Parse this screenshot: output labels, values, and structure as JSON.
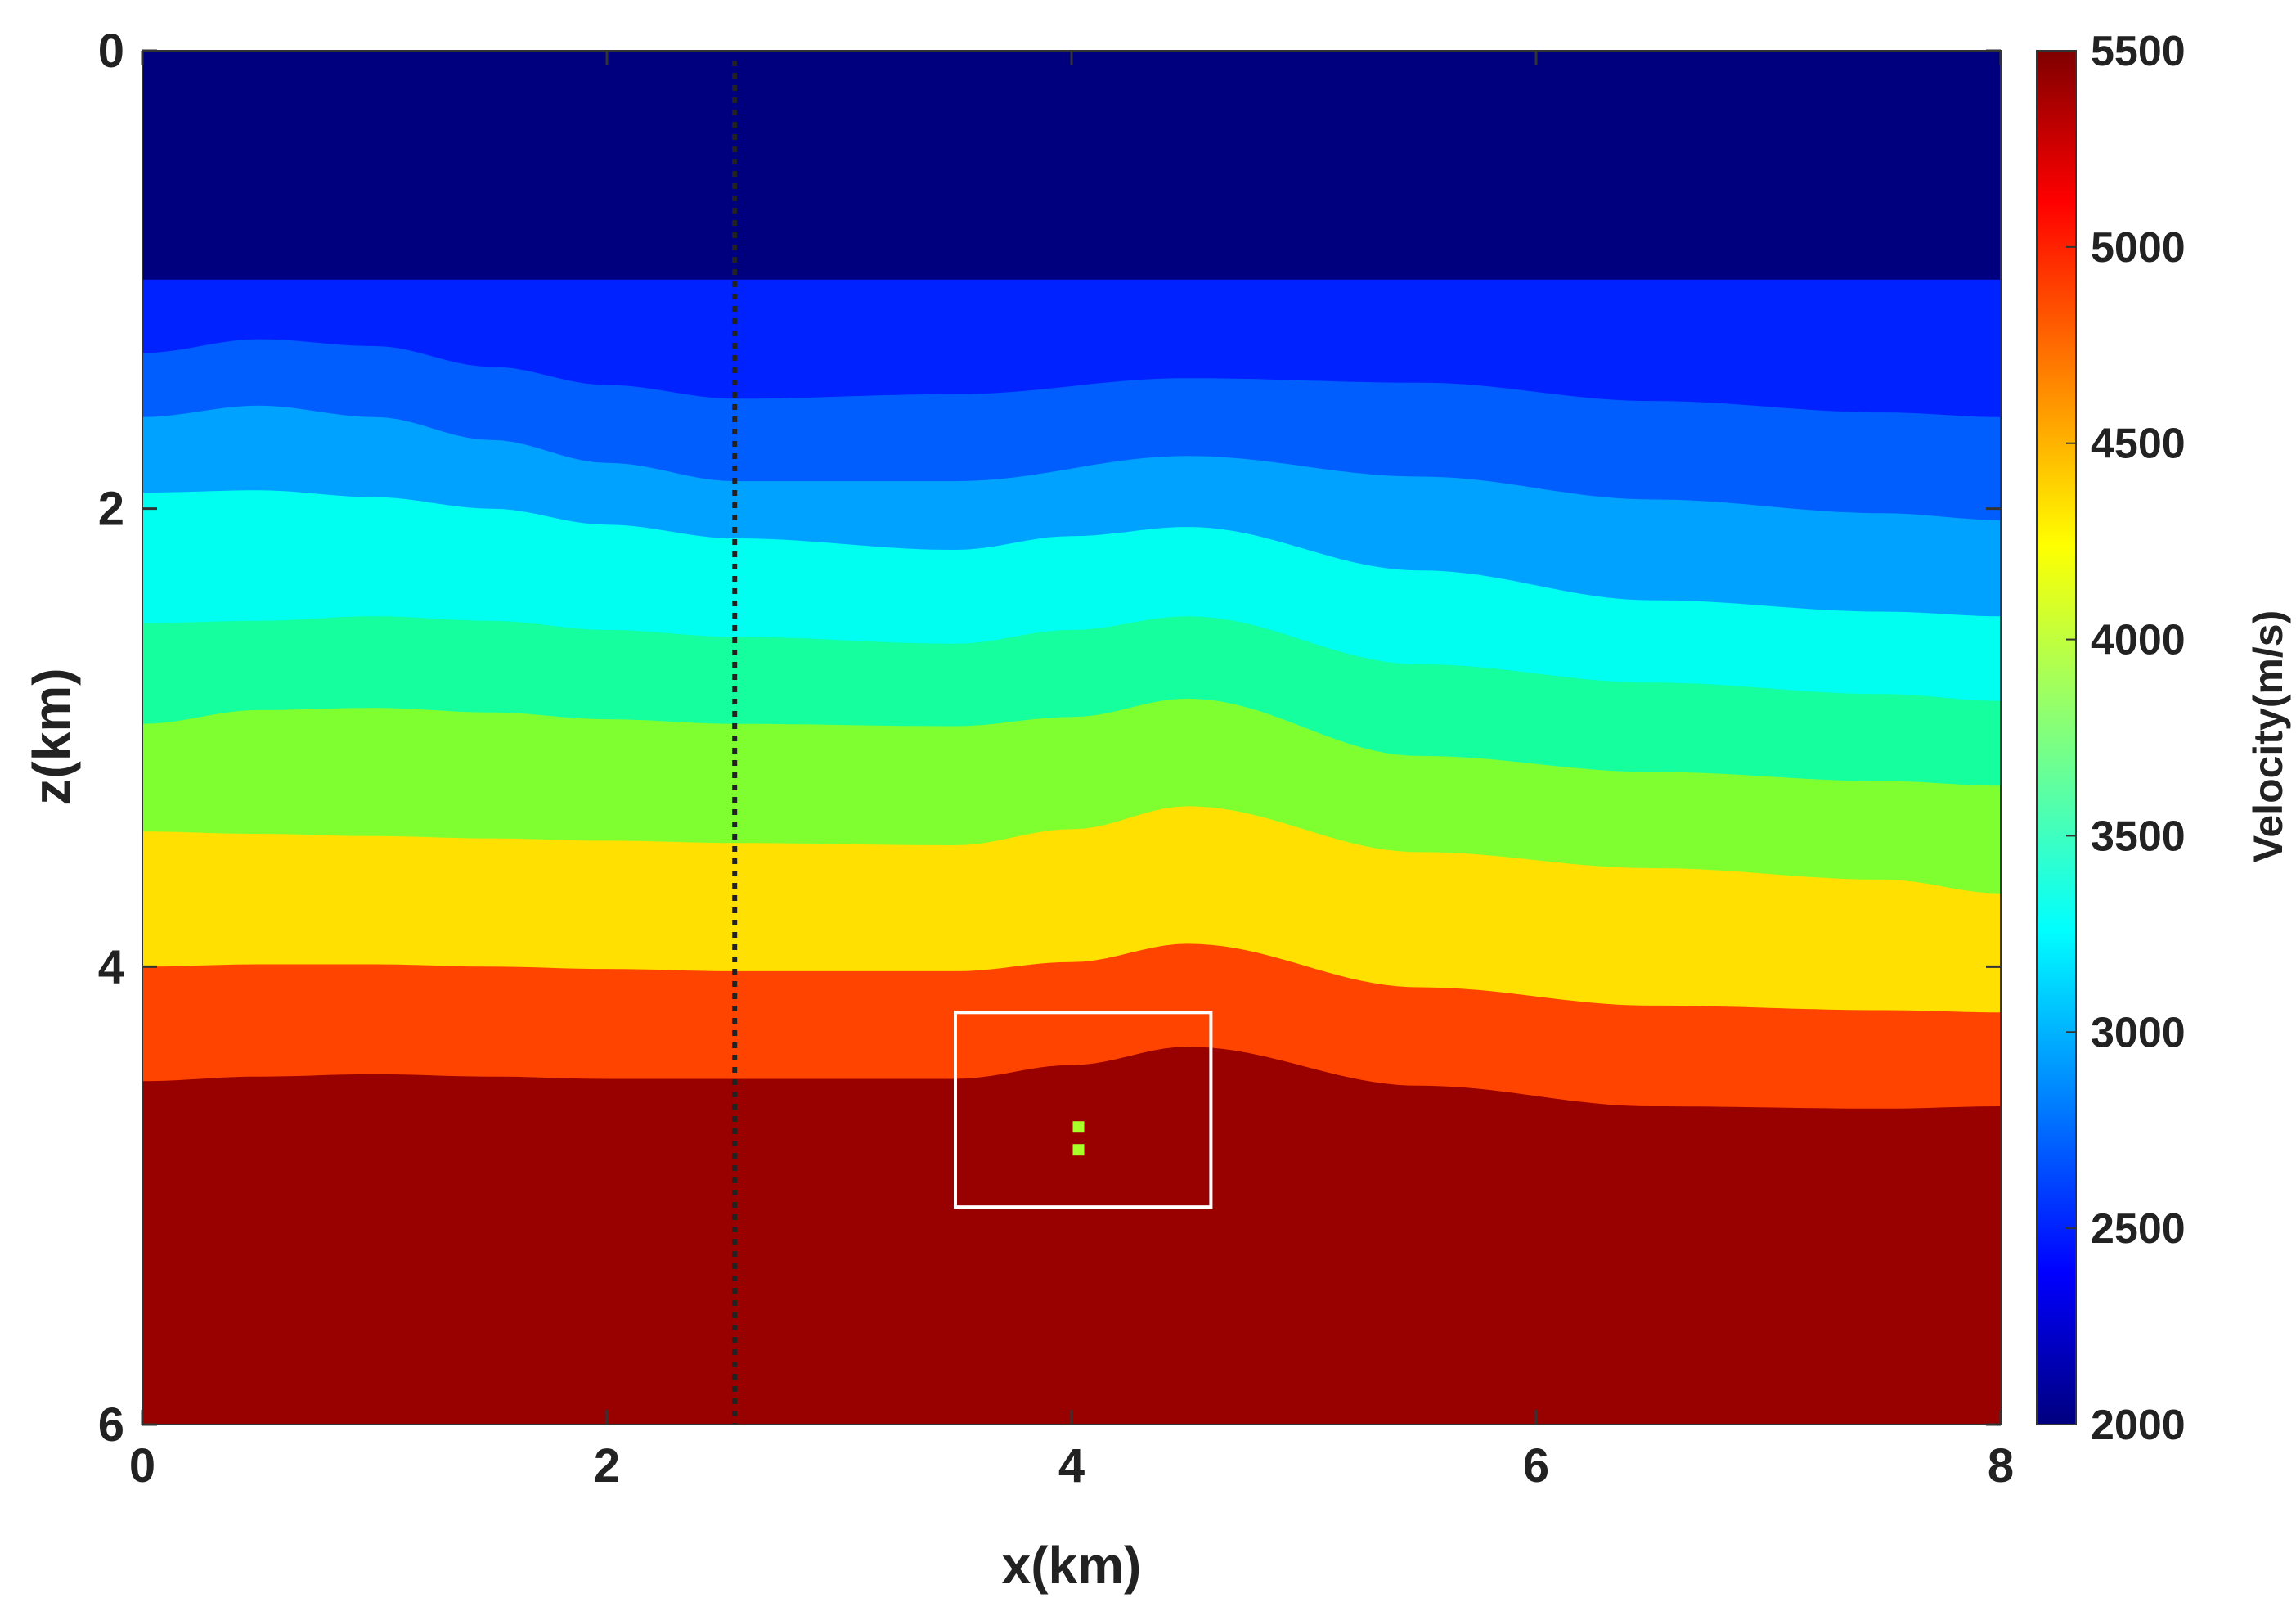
{
  "chart_data": {
    "type": "heatmap",
    "title": "",
    "xlabel": "x(km)",
    "ylabel": "z(km)",
    "xlim": [
      0,
      8
    ],
    "ylim": [
      0,
      6
    ],
    "y_reversed": true,
    "x_ticks": [
      0,
      2,
      4,
      6,
      8
    ],
    "y_ticks": [
      0,
      2,
      4,
      6
    ],
    "colorbar": {
      "label": "Velocity(m/s)",
      "range": [
        2000,
        5500
      ],
      "ticks": [
        2000,
        2500,
        3000,
        3500,
        4000,
        4500,
        5000,
        5500
      ],
      "colormap": "jet"
    },
    "layers": [
      {
        "velocity": 2000,
        "color": "#00007f"
      },
      {
        "velocity": 2500,
        "color": "#0022ff"
      },
      {
        "velocity": 2750,
        "color": "#005eff"
      },
      {
        "velocity": 3000,
        "color": "#00a2ff"
      },
      {
        "velocity": 3250,
        "color": "#00fff0"
      },
      {
        "velocity": 3600,
        "color": "#16ff9f"
      },
      {
        "velocity": 4000,
        "color": "#80ff30"
      },
      {
        "velocity": 4400,
        "color": "#ffe000"
      },
      {
        "velocity": 4900,
        "color": "#ff4400"
      },
      {
        "velocity": 5500,
        "color": "#990000"
      }
    ],
    "interfaces": [
      {
        "x": [
          0,
          8
        ],
        "z": [
          1.0,
          1.0
        ]
      },
      {
        "x": [
          0,
          0.5,
          1.0,
          1.5,
          2.0,
          2.55,
          3.5,
          4.5,
          5.5,
          6.5,
          7.5,
          8.0
        ],
        "z": [
          1.32,
          1.26,
          1.29,
          1.38,
          1.46,
          1.52,
          1.5,
          1.43,
          1.45,
          1.53,
          1.58,
          1.6
        ]
      },
      {
        "x": [
          0,
          0.5,
          1.0,
          1.5,
          2.0,
          2.55,
          3.5,
          4.5,
          5.5,
          6.5,
          7.5,
          8.0
        ],
        "z": [
          1.6,
          1.55,
          1.6,
          1.7,
          1.8,
          1.88,
          1.88,
          1.77,
          1.86,
          1.96,
          2.02,
          2.05
        ]
      },
      {
        "x": [
          0,
          0.5,
          1.0,
          1.5,
          2.0,
          2.55,
          3.5,
          4.0,
          4.5,
          5.5,
          6.5,
          7.5,
          8.0
        ],
        "z": [
          1.93,
          1.92,
          1.95,
          2.0,
          2.07,
          2.13,
          2.18,
          2.12,
          2.08,
          2.27,
          2.4,
          2.45,
          2.47
        ]
      },
      {
        "x": [
          0,
          0.5,
          1.0,
          1.5,
          2.0,
          2.55,
          3.5,
          4.0,
          4.5,
          5.5,
          6.5,
          7.5,
          8.0
        ],
        "z": [
          2.5,
          2.49,
          2.47,
          2.49,
          2.53,
          2.56,
          2.59,
          2.53,
          2.47,
          2.68,
          2.76,
          2.81,
          2.84
        ]
      },
      {
        "x": [
          0,
          0.5,
          1.0,
          1.5,
          2.0,
          2.55,
          3.5,
          4.0,
          4.5,
          5.5,
          6.5,
          7.5,
          8.0
        ],
        "z": [
          2.94,
          2.88,
          2.87,
          2.89,
          2.92,
          2.94,
          2.95,
          2.91,
          2.83,
          3.08,
          3.15,
          3.19,
          3.21
        ]
      },
      {
        "x": [
          0,
          0.5,
          1.0,
          1.5,
          2.0,
          2.55,
          3.5,
          4.0,
          4.5,
          5.5,
          6.5,
          7.5,
          8.0
        ],
        "z": [
          3.41,
          3.42,
          3.43,
          3.44,
          3.45,
          3.46,
          3.47,
          3.4,
          3.3,
          3.5,
          3.57,
          3.62,
          3.68
        ]
      },
      {
        "x": [
          0,
          0.5,
          1.0,
          1.5,
          2.0,
          2.55,
          3.5,
          4.0,
          4.5,
          5.5,
          6.5,
          7.5,
          8.0
        ],
        "z": [
          4.0,
          3.99,
          3.99,
          4.0,
          4.01,
          4.02,
          4.02,
          3.98,
          3.9,
          4.09,
          4.17,
          4.19,
          4.2
        ]
      },
      {
        "x": [
          0,
          0.5,
          1.0,
          1.5,
          2.0,
          2.55,
          3.5,
          4.0,
          4.5,
          5.5,
          6.5,
          7.5,
          8.0
        ],
        "z": [
          4.5,
          4.48,
          4.47,
          4.48,
          4.49,
          4.49,
          4.49,
          4.43,
          4.35,
          4.52,
          4.61,
          4.62,
          4.61
        ]
      }
    ],
    "well_line_x": 2.55,
    "box": {
      "x0": 3.5,
      "x1": 4.6,
      "z0": 4.2,
      "z1": 5.05
    },
    "markers": [
      {
        "x": 4.03,
        "z": 4.7
      },
      {
        "x": 4.03,
        "z": 4.8
      }
    ]
  }
}
